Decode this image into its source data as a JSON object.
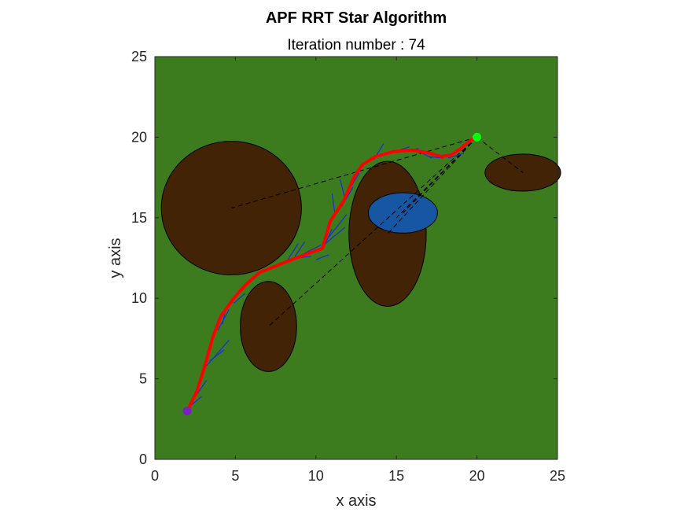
{
  "chart_data": {
    "type": "path-planning-plot",
    "title": "APF RRT Star Algorithm",
    "subtitle": "Iteration number : 74",
    "xlabel": "x axis",
    "ylabel": "y axis",
    "xlim": [
      0,
      25
    ],
    "ylim": [
      0,
      25
    ],
    "xticks": [
      "0",
      "5",
      "10",
      "15",
      "20",
      "25"
    ],
    "yticks": [
      "0",
      "5",
      "10",
      "15",
      "20",
      "25"
    ],
    "grid": false,
    "colors": {
      "background": "#3c7c1e",
      "obstacle": "#422306",
      "water": "#1656a3",
      "path": "#ff0000",
      "tree": "#1a2ed8",
      "links": "#000000",
      "start": "#7a1fc4",
      "goal": "#00ff00"
    },
    "start": {
      "x": 2,
      "y": 3
    },
    "goal": {
      "x": 20,
      "y": 20
    },
    "obstacles": [
      {
        "kind": "obstacle",
        "cx": 4.75,
        "cy": 15.6,
        "rx": 4.35,
        "ry": 4.15
      },
      {
        "kind": "obstacle",
        "cx": 7.05,
        "cy": 8.25,
        "rx": 1.75,
        "ry": 2.8
      },
      {
        "kind": "obstacle",
        "cx": 14.45,
        "cy": 14.0,
        "rx": 2.4,
        "ry": 4.5
      },
      {
        "kind": "obstacle",
        "cx": 22.85,
        "cy": 17.8,
        "rx": 2.35,
        "ry": 1.15
      },
      {
        "kind": "water",
        "cx": 15.4,
        "cy": 15.3,
        "rx": 2.15,
        "ry": 1.25
      }
    ],
    "links": [
      [
        [
          20,
          20
        ],
        [
          4.75,
          15.6
        ]
      ],
      [
        [
          20,
          20
        ],
        [
          7.05,
          8.25
        ]
      ],
      [
        [
          20,
          20
        ],
        [
          14.45,
          14.0
        ]
      ],
      [
        [
          20,
          20
        ],
        [
          15.0,
          15.0
        ]
      ],
      [
        [
          20,
          20
        ],
        [
          15.4,
          15.3
        ]
      ],
      [
        [
          20,
          20
        ],
        [
          22.85,
          17.8
        ]
      ]
    ],
    "path": [
      [
        2,
        3
      ],
      [
        2.6,
        4.2
      ],
      [
        3.1,
        5.8
      ],
      [
        3.6,
        7.6
      ],
      [
        4.1,
        8.9
      ],
      [
        4.9,
        10.0
      ],
      [
        5.6,
        10.8
      ],
      [
        6.5,
        11.6
      ],
      [
        7.5,
        12.0
      ],
      [
        8.5,
        12.4
      ],
      [
        9.3,
        12.7
      ],
      [
        10.4,
        13.1
      ],
      [
        10.9,
        14.8
      ],
      [
        11.7,
        16.0
      ],
      [
        12.4,
        17.6
      ],
      [
        12.9,
        18.3
      ],
      [
        13.7,
        18.8
      ],
      [
        14.8,
        19.1
      ],
      [
        16.0,
        19.2
      ],
      [
        17.1,
        19.0
      ],
      [
        17.8,
        18.8
      ],
      [
        18.4,
        18.9
      ],
      [
        19.0,
        19.3
      ],
      [
        19.6,
        19.8
      ],
      [
        20.0,
        20.0
      ]
    ],
    "tree": [
      [
        [
          2.1,
          3.3
        ],
        [
          3.2,
          4.9
        ]
      ],
      [
        [
          2.3,
          3.4
        ],
        [
          2.9,
          3.9
        ]
      ],
      [
        [
          3.2,
          5.8
        ],
        [
          4.6,
          7.4
        ]
      ],
      [
        [
          3.4,
          6.1
        ],
        [
          4.3,
          6.8
        ]
      ],
      [
        [
          3.9,
          8.0
        ],
        [
          4.6,
          9.3
        ]
      ],
      [
        [
          4.2,
          8.4
        ],
        [
          4.4,
          9.4
        ]
      ],
      [
        [
          4.9,
          9.7
        ],
        [
          5.6,
          10.3
        ]
      ],
      [
        [
          8.2,
          12.3
        ],
        [
          8.9,
          13.4
        ]
      ],
      [
        [
          8.7,
          12.6
        ],
        [
          9.3,
          13.5
        ]
      ],
      [
        [
          8.8,
          12.5
        ],
        [
          9.7,
          12.6
        ]
      ],
      [
        [
          9.3,
          12.8
        ],
        [
          10.3,
          13.3
        ]
      ],
      [
        [
          10.0,
          12.4
        ],
        [
          10.8,
          12.7
        ]
      ],
      [
        [
          10.6,
          13.4
        ],
        [
          11.8,
          14.4
        ]
      ],
      [
        [
          10.5,
          13.2
        ],
        [
          11.0,
          14.3
        ]
      ],
      [
        [
          10.8,
          13.8
        ],
        [
          11.9,
          15.2
        ]
      ],
      [
        [
          11.2,
          15.1
        ],
        [
          11.0,
          16.5
        ]
      ],
      [
        [
          11.6,
          15.7
        ],
        [
          12.3,
          16.9
        ]
      ],
      [
        [
          11.8,
          16.2
        ],
        [
          11.5,
          17.4
        ]
      ],
      [
        [
          12.1,
          16.8
        ],
        [
          12.7,
          17.8
        ]
      ],
      [
        [
          13.6,
          18.6
        ],
        [
          14.2,
          19.6
        ]
      ],
      [
        [
          14.6,
          19.0
        ],
        [
          15.8,
          19.4
        ]
      ],
      [
        [
          15.4,
          19.1
        ],
        [
          16.4,
          19.3
        ]
      ],
      [
        [
          16.4,
          19.1
        ],
        [
          17.2,
          18.7
        ]
      ],
      [
        [
          17.0,
          18.8
        ],
        [
          17.9,
          18.7
        ]
      ],
      [
        [
          18.2,
          18.7
        ],
        [
          19.2,
          19.0
        ]
      ],
      [
        [
          18.6,
          19.1
        ],
        [
          19.5,
          19.7
        ]
      ],
      [
        [
          19.1,
          19.5
        ],
        [
          19.9,
          19.9
        ]
      ]
    ]
  }
}
